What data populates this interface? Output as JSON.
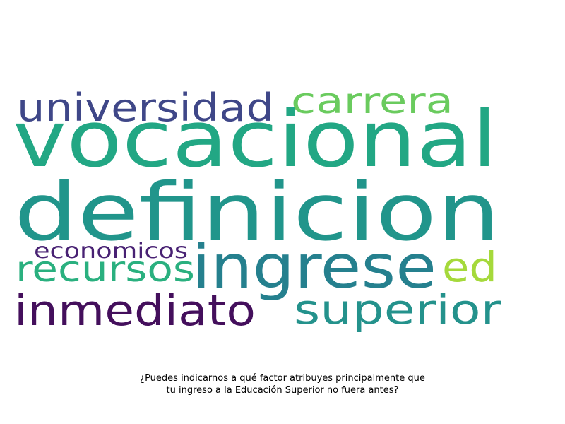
{
  "word_cloud": {
    "words": [
      {
        "text": "vocacional",
        "color": "#22a784"
      },
      {
        "text": "definicion",
        "color": "#21958b"
      },
      {
        "text": "ingrese",
        "color": "#25808e"
      },
      {
        "text": "inmediato",
        "color": "#440f5c"
      },
      {
        "text": "superior",
        "color": "#24928c"
      },
      {
        "text": "universidad",
        "color": "#3f4788"
      },
      {
        "text": "carrera",
        "color": "#6acb5e"
      },
      {
        "text": "recursos",
        "color": "#2ab07f"
      },
      {
        "text": "ed",
        "color": "#a5d93b"
      },
      {
        "text": "economicos",
        "color": "#482173"
      }
    ]
  },
  "caption": {
    "line1": "¿Puedes indicarnos a qué factor atribuyes principalmente que",
    "line2": "tu ingreso a la Educación Superior no fuera antes?"
  }
}
